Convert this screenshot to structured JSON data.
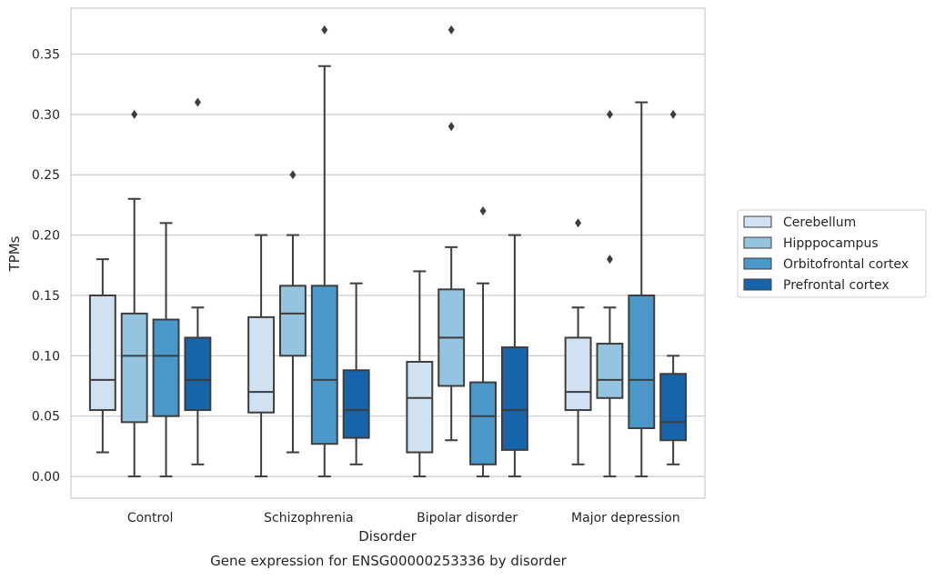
{
  "chart_data": {
    "type": "box",
    "xlabel": "Disorder",
    "ylabel": "TPMs",
    "caption": "Gene expression for ENSG00000253336 by disorder",
    "ylim": [
      -0.018,
      0.388
    ],
    "yticks": [
      0.0,
      0.05,
      0.1,
      0.15,
      0.2,
      0.25,
      0.3,
      0.35
    ],
    "ytick_labels": [
      "0.00",
      "0.05",
      "0.10",
      "0.15",
      "0.20",
      "0.25",
      "0.30",
      "0.35"
    ],
    "grid": "horizontal",
    "legend_position": "right",
    "categories": [
      "Control",
      "Schizophrenia",
      "Bipolar disorder",
      "Major depression"
    ],
    "series": [
      {
        "name": "Cerebellum",
        "color": "#d0e1f2",
        "boxes": [
          {
            "min": 0.02,
            "q1": 0.055,
            "median": 0.08,
            "q3": 0.15,
            "max": 0.18,
            "outliers": []
          },
          {
            "min": 0.0,
            "q1": 0.053,
            "median": 0.07,
            "q3": 0.132,
            "max": 0.2,
            "outliers": []
          },
          {
            "min": 0.0,
            "q1": 0.02,
            "median": 0.065,
            "q3": 0.095,
            "max": 0.17,
            "outliers": []
          },
          {
            "min": 0.01,
            "q1": 0.055,
            "median": 0.07,
            "q3": 0.115,
            "max": 0.14,
            "outliers": [
              0.21
            ]
          }
        ]
      },
      {
        "name": "Hipppocampus",
        "color": "#94c4df",
        "boxes": [
          {
            "min": 0.0,
            "q1": 0.045,
            "median": 0.1,
            "q3": 0.135,
            "max": 0.23,
            "outliers": [
              0.3
            ]
          },
          {
            "min": 0.02,
            "q1": 0.1,
            "median": 0.135,
            "q3": 0.158,
            "max": 0.2,
            "outliers": [
              0.25
            ]
          },
          {
            "min": 0.03,
            "q1": 0.075,
            "median": 0.115,
            "q3": 0.155,
            "max": 0.19,
            "outliers": [
              0.29,
              0.37
            ]
          },
          {
            "min": 0.0,
            "q1": 0.065,
            "median": 0.08,
            "q3": 0.11,
            "max": 0.14,
            "outliers": [
              0.18,
              0.3
            ]
          }
        ]
      },
      {
        "name": "Orbitofrontal cortex",
        "color": "#4a98c9",
        "boxes": [
          {
            "min": 0.0,
            "q1": 0.05,
            "median": 0.1,
            "q3": 0.13,
            "max": 0.21,
            "outliers": []
          },
          {
            "min": 0.0,
            "q1": 0.027,
            "median": 0.08,
            "q3": 0.158,
            "max": 0.34,
            "outliers": [
              0.37
            ]
          },
          {
            "min": 0.0,
            "q1": 0.01,
            "median": 0.05,
            "q3": 0.078,
            "max": 0.16,
            "outliers": [
              0.22
            ]
          },
          {
            "min": 0.0,
            "q1": 0.04,
            "median": 0.08,
            "q3": 0.15,
            "max": 0.31,
            "outliers": []
          }
        ]
      },
      {
        "name": "Prefrontal cortex",
        "color": "#1764ab",
        "boxes": [
          {
            "min": 0.01,
            "q1": 0.055,
            "median": 0.08,
            "q3": 0.115,
            "max": 0.14,
            "outliers": [
              0.31
            ]
          },
          {
            "min": 0.01,
            "q1": 0.032,
            "median": 0.055,
            "q3": 0.088,
            "max": 0.16,
            "outliers": []
          },
          {
            "min": 0.0,
            "q1": 0.022,
            "median": 0.055,
            "q3": 0.107,
            "max": 0.2,
            "outliers": []
          },
          {
            "min": 0.01,
            "q1": 0.03,
            "median": 0.045,
            "q3": 0.085,
            "max": 0.1,
            "outliers": [
              0.3
            ]
          }
        ]
      }
    ]
  }
}
